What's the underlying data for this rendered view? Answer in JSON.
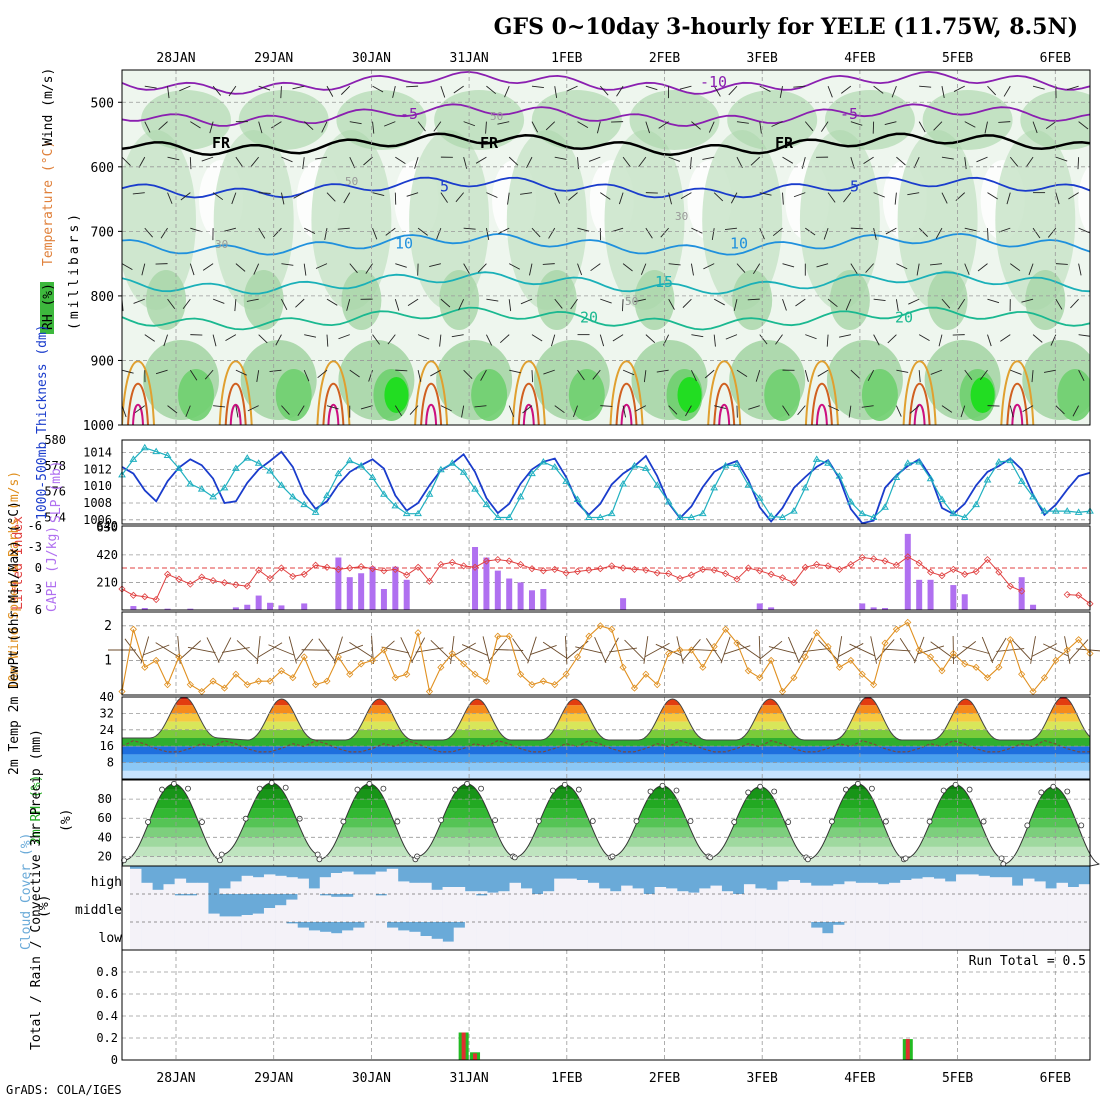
{
  "title": "GFS 0~10day 3-hourly for YELE (11.75W, 8.5N)",
  "footer": "GrADS: COLA/IGES",
  "dates": [
    "28JAN",
    "29JAN",
    "30JAN",
    "31JAN",
    "1FEB",
    "2FEB",
    "3FEB",
    "4FEB",
    "5FEB",
    "6FEB"
  ],
  "colors": {
    "rh": "#22cc22",
    "temp": "#d03030",
    "wind": "#333333",
    "slp": "#1a3ccc",
    "thick": "#20b0c0",
    "cape": "#b070f0",
    "li": "#e04040",
    "ws": "#e09020",
    "cloud": "#6aaad8",
    "precip_total": "#22bb22",
    "precip_conv": "#e03030"
  },
  "chart_data": [
    {
      "type": "heatmap",
      "name": "upper",
      "ylabel": "(millibars)",
      "legend": [
        "RH (%)",
        "Temperature (°C)",
        "Wind (m/s)"
      ],
      "ylim": [
        450,
        1000
      ],
      "yticks": [
        500,
        600,
        700,
        800,
        900,
        1000
      ],
      "contours": [
        {
          "label": "-10",
          "p": 470
        },
        {
          "label": "-5",
          "p": 520
        },
        {
          "label": "FR",
          "p": 565
        },
        {
          "label": "5",
          "p": 632
        },
        {
          "label": "10",
          "p": 720
        },
        {
          "label": "15",
          "p": 780
        },
        {
          "label": "20",
          "p": 835
        }
      ],
      "rh_labels": [
        "30",
        "50"
      ]
    },
    {
      "type": "line",
      "name": "slp-thickness",
      "ylabel_left": "1000-500mb Thickness (dm)",
      "ylabel_right": "SLP (mb)",
      "y1lim": [
        573.5,
        580
      ],
      "y1ticks": [
        574,
        576,
        578,
        580
      ],
      "y2lim": [
        1005.5,
        1015.5
      ],
      "y2ticks": [
        1006,
        1008,
        1010,
        1012,
        1014
      ],
      "series": [
        {
          "name": "SLP (mb)",
          "values": [
            1012.3,
            1011.5,
            1009.5,
            1008.2,
            1010.6,
            1012.2,
            1013.2,
            1012.5,
            1010.9,
            1008.0,
            1008.2,
            1010.4,
            1012.0,
            1013.0,
            1014.1,
            1012.3,
            1009.1,
            1007.3,
            1008.2,
            1010.2,
            1011.7,
            1012.5,
            1013.2,
            1012.1,
            1008.9,
            1007.1,
            1008.0,
            1010.1,
            1011.9,
            1012.7,
            1013.8,
            1011.7,
            1008.6,
            1006.8,
            1007.9,
            1010.3,
            1012.0,
            1012.9,
            1013.3,
            1011.1,
            1008.0,
            1006.6,
            1007.9,
            1010.2,
            1011.5,
            1012.4,
            1013.6,
            1011.2,
            1008.0,
            1006.2,
            1007.6,
            1009.9,
            1011.7,
            1012.5,
            1013.0,
            1010.7,
            1007.5,
            1005.8,
            1007.4,
            1009.8,
            1011.1,
            1012.3,
            1013.1,
            1010.9,
            1007.3,
            1005.6,
            1005.9,
            1009.8,
            1011.3,
            1012.4,
            1013.2,
            1011.1,
            1007.4,
            1006.7,
            1007.9,
            1010.1,
            1011.7,
            1012.4,
            1013.3,
            1012.0,
            1009.0,
            1006.6,
            1007.8,
            1009.6,
            1011.2,
            1011.6
          ]
        },
        {
          "name": "1000-500mb Thickness (dm)",
          "values": [
            577.3,
            578.5,
            579.4,
            579.1,
            578.8,
            577.8,
            576.6,
            576.2,
            575.6,
            576.3,
            577.8,
            578.6,
            578.2,
            577.6,
            576.5,
            575.6,
            575.0,
            574.4,
            575.7,
            577.4,
            578.4,
            578.0,
            577.1,
            575.8,
            574.9,
            574.3,
            574.3,
            575.8,
            577.7,
            578.2,
            577.5,
            576.2,
            575.0,
            574.0,
            574.0,
            575.6,
            577.4,
            578.3,
            577.9,
            576.8,
            575.4,
            574.0,
            574.0,
            574.3,
            576.6,
            578.0,
            577.8,
            576.5,
            575.2,
            574.0,
            574.0,
            574.3,
            576.3,
            578.0,
            578.1,
            576.5,
            575.5,
            574.1,
            574.0,
            574.5,
            576.3,
            578.5,
            578.2,
            577.2,
            575.2,
            574.3,
            574.0,
            574.8,
            577.1,
            578.2,
            578.3,
            577.0,
            575.4,
            574.3,
            574.0,
            575.0,
            576.9,
            578.3,
            578.4,
            576.8,
            575.6,
            574.5,
            574.5,
            574.5,
            574.4,
            574.5
          ]
        }
      ]
    },
    {
      "type": "bar",
      "name": "cape-li",
      "ylabel_left": "Lifted Index",
      "ylabel_right": "CAPE (J/kg)",
      "y1ticks": [
        -6,
        -3,
        0,
        3,
        6
      ],
      "y1lim": [
        -6,
        6
      ],
      "y2lim": [
        0,
        640
      ],
      "y2ticks": [
        210,
        420,
        630,
        640
      ],
      "li_reference": 0,
      "series": [
        {
          "name": "Lifted Index",
          "values": [
            3.0,
            3.9,
            4.1,
            4.5,
            0.9,
            1.6,
            2.3,
            1.3,
            1.8,
            2.1,
            2.4,
            2.6,
            0.3,
            1.5,
            0.0,
            1.2,
            0.9,
            -0.4,
            -0.1,
            0.2,
            0.0,
            -0.2,
            0.1,
            0.4,
            0.2,
            1.0,
            -0.1,
            1.9,
            -0.5,
            -0.8,
            -0.3,
            -0.1,
            -1.0,
            -1.2,
            -1.0,
            -0.5,
            0.1,
            0.4,
            0.2,
            0.7,
            0.5,
            0.3,
            0.1,
            -0.3,
            0.0,
            0.2,
            0.3,
            0.7,
            0.8,
            1.5,
            1.0,
            0.2,
            0.3,
            0.8,
            1.6,
            0.0,
            0.4,
            0.9,
            1.4,
            2.1,
            -0.1,
            -0.5,
            -0.3,
            0.2,
            -0.5,
            -1.5,
            -1.3,
            -1.0,
            -0.4,
            -1.6,
            -0.7,
            0.6,
            1.1,
            0.2,
            0.9,
            0.5,
            -1.2,
            0.6,
            2.6,
            3.3,
            null,
            null,
            null,
            3.8,
            3.9,
            5.1
          ]
        },
        {
          "name": "CAPE (J/kg)",
          "values": [
            0,
            30,
            15,
            0,
            10,
            0,
            10,
            0,
            0,
            0,
            20,
            40,
            110,
            55,
            35,
            0,
            50,
            0,
            0,
            400,
            250,
            280,
            330,
            160,
            330,
            230,
            0,
            0,
            0,
            0,
            0,
            480,
            400,
            300,
            240,
            210,
            150,
            160,
            0,
            0,
            0,
            0,
            0,
            0,
            90,
            0,
            0,
            0,
            0,
            0,
            0,
            0,
            0,
            0,
            0,
            0,
            50,
            20,
            0,
            0,
            0,
            0,
            0,
            0,
            0,
            50,
            20,
            15,
            0,
            580,
            230,
            230,
            0,
            190,
            120,
            0,
            0,
            0,
            0,
            250,
            40,
            0,
            0,
            0,
            0,
            0
          ]
        }
      ]
    },
    {
      "type": "line",
      "name": "wind10m",
      "ylabel": "10m Wind Speed & Barbs (m/s)",
      "ylim": [
        0,
        2.4
      ],
      "yticks": [
        1,
        2
      ],
      "series": [
        {
          "name": "10m Wind Speed (m/s)",
          "values": [
            0.1,
            1.9,
            0.8,
            1.0,
            0.3,
            1.1,
            0.3,
            0.1,
            0.4,
            0.2,
            0.6,
            0.3,
            0.4,
            0.4,
            0.7,
            0.5,
            1.1,
            0.3,
            0.4,
            1.1,
            0.6,
            0.9,
            1.0,
            1.3,
            0.5,
            0.6,
            1.8,
            0.1,
            0.8,
            1.2,
            0.9,
            0.6,
            0.4,
            1.7,
            1.7,
            0.6,
            0.3,
            0.4,
            0.3,
            0.6,
            1.1,
            1.7,
            2.0,
            1.9,
            0.8,
            0.2,
            0.6,
            0.3,
            1.2,
            1.3,
            1.3,
            0.8,
            1.4,
            1.9,
            1.5,
            0.7,
            0.5,
            1.0,
            0.1,
            0.5,
            1.1,
            1.8,
            1.4,
            0.8,
            1.0,
            0.6,
            0.3,
            1.5,
            1.9,
            2.1,
            1.3,
            1.1,
            0.7,
            1.2,
            0.9,
            0.8,
            0.5,
            0.8,
            1.6,
            0.6,
            0.1,
            0.5,
            1.0,
            1.3,
            1.6,
            1.2
          ]
        }
      ]
    },
    {
      "type": "area",
      "name": "temp2m",
      "ylabel": "2m Temp 2m DewPt (6hr Min/Max) (°C)",
      "ylim": [
        0,
        40
      ],
      "yticks": [
        8,
        16,
        24,
        32,
        40
      ],
      "days": 10,
      "series": [
        {
          "name": "2m Temp max",
          "values": [
            40,
            39,
            39,
            39,
            39,
            39,
            39,
            40,
            39,
            40
          ]
        },
        {
          "name": "2m Temp min",
          "values": [
            20,
            19,
            19,
            19,
            19,
            19,
            19,
            19,
            19,
            19
          ]
        }
      ]
    },
    {
      "type": "area",
      "name": "rh2m",
      "ylabel": "2m RH (%)",
      "ylim": [
        10,
        100
      ],
      "yticks": [
        20,
        40,
        60,
        80
      ],
      "days": 10,
      "series": [
        {
          "name": "2m RH max",
          "values": [
            96,
            97,
            96,
            96,
            95,
            94,
            93,
            96,
            95,
            93
          ]
        },
        {
          "name": "2m RH min",
          "values": [
            16,
            22,
            17,
            20,
            19,
            20,
            19,
            17,
            18,
            12
          ]
        }
      ]
    },
    {
      "type": "bar",
      "name": "cloud",
      "ylabel": "Cloud Cover (%)",
      "row_labels": [
        "high",
        "middle",
        "low"
      ],
      "series": [
        {
          "name": "high",
          "values": [
            10,
            60,
            85,
            65,
            45,
            60,
            60,
            100,
            80,
            55,
            35,
            40,
            30,
            35,
            40,
            45,
            80,
            40,
            25,
            20,
            30,
            30,
            20,
            10,
            55,
            60,
            60,
            85,
            75,
            75,
            90,
            90,
            95,
            90,
            60,
            80,
            100,
            90,
            45,
            45,
            50,
            60,
            80,
            90,
            70,
            80,
            100,
            75,
            80,
            90,
            95,
            80,
            70,
            90,
            100,
            65,
            80,
            85,
            55,
            50,
            60,
            70,
            70,
            65,
            55,
            60,
            60,
            65,
            60,
            50,
            45,
            40,
            45,
            55,
            30,
            30,
            35,
            40,
            40,
            70,
            45,
            55,
            80,
            60,
            75,
            65
          ]
        },
        {
          "name": "middle",
          "values": [
            0,
            0,
            0,
            0,
            5,
            5,
            0,
            70,
            80,
            80,
            75,
            70,
            50,
            40,
            20,
            0,
            0,
            5,
            10,
            10,
            0,
            0,
            5,
            0,
            0,
            0,
            0,
            0,
            0,
            0,
            0,
            5,
            0,
            0,
            0,
            0,
            0,
            0,
            0,
            0,
            0,
            0,
            0,
            0,
            0,
            0,
            0,
            0,
            0,
            0,
            0,
            0,
            0,
            0,
            0,
            0,
            0,
            0,
            0,
            0,
            0,
            0,
            0,
            0,
            0,
            0,
            0,
            0,
            0,
            0,
            0,
            0,
            0,
            0,
            0,
            0,
            0,
            0,
            0,
            0,
            0,
            0,
            0,
            0,
            0,
            0
          ]
        },
        {
          "name": "low",
          "values": [
            0,
            0,
            0,
            0,
            0,
            0,
            0,
            0,
            0,
            0,
            0,
            0,
            0,
            0,
            5,
            20,
            30,
            35,
            40,
            30,
            20,
            0,
            0,
            20,
            30,
            35,
            50,
            60,
            70,
            20,
            0,
            0,
            0,
            0,
            0,
            0,
            0,
            0,
            0,
            0,
            0,
            0,
            0,
            0,
            0,
            0,
            0,
            0,
            0,
            0,
            0,
            0,
            0,
            0,
            0,
            0,
            0,
            0,
            0,
            0,
            0,
            20,
            40,
            10,
            0,
            0,
            0,
            0,
            0,
            0,
            0,
            0,
            0,
            0,
            0,
            0,
            0,
            0,
            0,
            0,
            0,
            0,
            0,
            0,
            0,
            0
          ]
        }
      ]
    },
    {
      "type": "bar",
      "name": "precip",
      "ylabel": "Total / Rain / Convective 3hr Precip (mm)",
      "ylim": [
        0,
        1
      ],
      "yticks": [
        0,
        0.2,
        0.4,
        0.6,
        0.8
      ],
      "annotation": "Run Total = 0.5",
      "series": [
        {
          "name": "Total",
          "values": {
            "30": 0.25,
            "31": 0.07,
            "69": 0.19
          }
        },
        {
          "name": "Convective",
          "values": {
            "30": 0.25,
            "31": 0.06,
            "69": 0.19
          }
        }
      ]
    }
  ]
}
